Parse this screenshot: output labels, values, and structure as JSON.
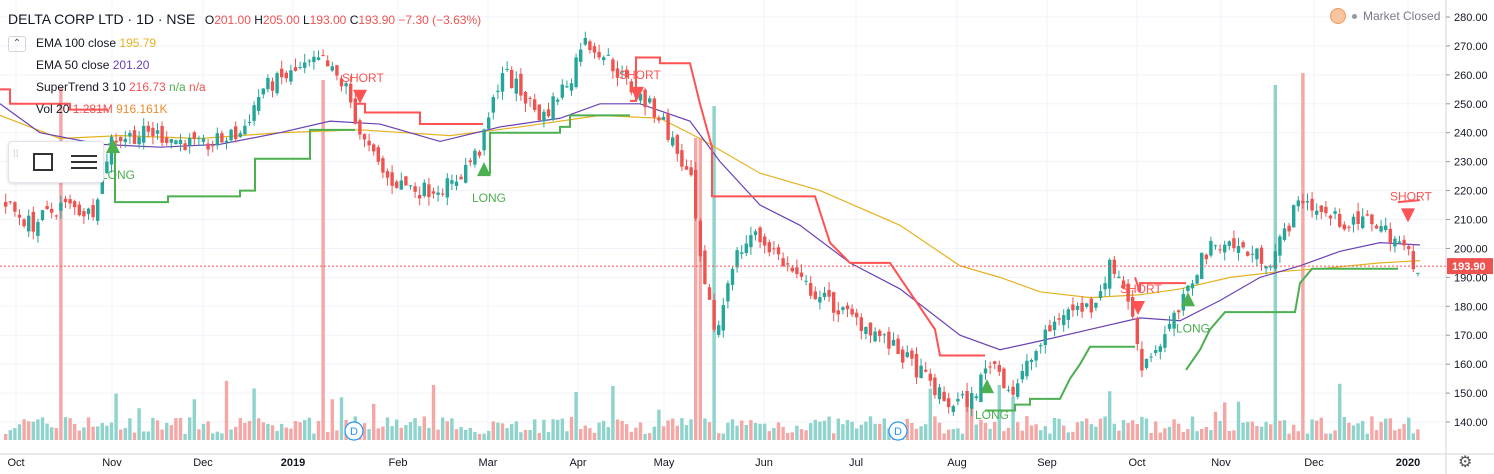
{
  "header": {
    "symbol_title": "DELTA CORP LTD · 1D · NSE",
    "ohlc": {
      "o_label": "O",
      "o": "201.00",
      "h_label": "H",
      "h": "205.00",
      "l_label": "L",
      "l": "193.00",
      "c_label": "C",
      "c": "193.90",
      "change": "−7.30 (−3.63%)"
    },
    "market_status": "Market Closed",
    "studies": [
      {
        "name": "EMA 100 close",
        "value": "195.79",
        "color": "#e7b21f"
      },
      {
        "name": "EMA 50 close",
        "value": "201.20",
        "color": "#6a41b5"
      },
      {
        "name": "SuperTrend 3 10",
        "value": "216.73",
        "value2": "n/a",
        "value3": "n/a",
        "color": "#ef5350",
        "color2": "#4caf50",
        "color3": "#ef5350"
      },
      {
        "name": "Vol 20",
        "value": "1.281M",
        "value2": "916.161K",
        "color": "#ef5350",
        "color2": "#ef8a2e"
      }
    ]
  },
  "price_scale": {
    "ticks": [
      "280.00",
      "270.00",
      "260.00",
      "250.00",
      "240.00",
      "230.00",
      "220.00",
      "210.00",
      "200.00",
      "190.00",
      "180.00",
      "170.00",
      "160.00",
      "150.00",
      "140.00"
    ],
    "last_price_label": "193.90"
  },
  "chart_data": {
    "type": "candlestick",
    "symbol": "DELTA CORP LTD",
    "interval": "1D",
    "exchange": "NSE",
    "x_ticks": [
      "Oct",
      "Nov",
      "Dec",
      "2019",
      "Feb",
      "Mar",
      "Apr",
      "May",
      "Jun",
      "Jul",
      "Aug",
      "Sep",
      "Oct",
      "Nov",
      "Dec",
      "2020"
    ],
    "y_range": [
      134,
      284
    ],
    "last_price": 193.9,
    "colors": {
      "up": "#26a69a",
      "down": "#ef5350",
      "ema100": "#e7b21f",
      "ema50": "#6a41b5",
      "st_up": "#4caf50",
      "st_down": "#ff5252"
    },
    "price_path": [
      [
        0,
        216
      ],
      [
        30,
        208
      ],
      [
        60,
        215
      ],
      [
        90,
        212
      ],
      [
        110,
        238
      ],
      [
        150,
        240
      ],
      [
        200,
        235
      ],
      [
        240,
        240
      ],
      [
        260,
        255
      ],
      [
        300,
        262
      ],
      [
        320,
        265
      ],
      [
        345,
        255
      ],
      [
        360,
        238
      ],
      [
        385,
        224
      ],
      [
        420,
        220
      ],
      [
        450,
        222
      ],
      [
        480,
        235
      ],
      [
        500,
        262
      ],
      [
        540,
        245
      ],
      [
        570,
        260
      ],
      [
        580,
        272
      ],
      [
        600,
        268
      ],
      [
        630,
        255
      ],
      [
        660,
        245
      ],
      [
        690,
        222
      ],
      [
        700,
        190
      ],
      [
        715,
        170
      ],
      [
        730,
        195
      ],
      [
        750,
        205
      ],
      [
        770,
        200
      ],
      [
        800,
        188
      ],
      [
        840,
        178
      ],
      [
        870,
        172
      ],
      [
        900,
        163
      ],
      [
        925,
        155
      ],
      [
        945,
        146
      ],
      [
        970,
        148
      ],
      [
        990,
        162
      ],
      [
        1010,
        150
      ],
      [
        1030,
        162
      ],
      [
        1060,
        178
      ],
      [
        1090,
        180
      ],
      [
        1110,
        195
      ],
      [
        1125,
        185
      ],
      [
        1140,
        160
      ],
      [
        1160,
        168
      ],
      [
        1180,
        180
      ],
      [
        1200,
        197
      ],
      [
        1220,
        203
      ],
      [
        1250,
        198
      ],
      [
        1270,
        196
      ],
      [
        1300,
        218
      ],
      [
        1320,
        212
      ],
      [
        1350,
        208
      ],
      [
        1370,
        210
      ],
      [
        1395,
        203
      ],
      [
        1415,
        194
      ]
    ],
    "ema100_path": [
      [
        0,
        246
      ],
      [
        60,
        238
      ],
      [
        120,
        239
      ],
      [
        200,
        238
      ],
      [
        280,
        240
      ],
      [
        360,
        241
      ],
      [
        450,
        239
      ],
      [
        520,
        242
      ],
      [
        600,
        246
      ],
      [
        660,
        245
      ],
      [
        700,
        238
      ],
      [
        760,
        226
      ],
      [
        820,
        220
      ],
      [
        900,
        208
      ],
      [
        960,
        194
      ],
      [
        1000,
        190
      ],
      [
        1040,
        185
      ],
      [
        1090,
        183
      ],
      [
        1140,
        184
      ],
      [
        1180,
        186
      ],
      [
        1230,
        190
      ],
      [
        1280,
        192
      ],
      [
        1320,
        193
      ],
      [
        1380,
        195
      ],
      [
        1420,
        195.8
      ]
    ],
    "ema50_path": [
      [
        0,
        250
      ],
      [
        40,
        240
      ],
      [
        100,
        236
      ],
      [
        160,
        235
      ],
      [
        220,
        236
      ],
      [
        280,
        240
      ],
      [
        330,
        244
      ],
      [
        380,
        243
      ],
      [
        440,
        237
      ],
      [
        500,
        242
      ],
      [
        560,
        245
      ],
      [
        600,
        250
      ],
      [
        640,
        250
      ],
      [
        690,
        244
      ],
      [
        720,
        230
      ],
      [
        760,
        215
      ],
      [
        800,
        208
      ],
      [
        850,
        195
      ],
      [
        900,
        186
      ],
      [
        960,
        170
      ],
      [
        1000,
        165
      ],
      [
        1040,
        168
      ],
      [
        1090,
        172
      ],
      [
        1140,
        176
      ],
      [
        1180,
        175
      ],
      [
        1220,
        182
      ],
      [
        1260,
        190
      ],
      [
        1300,
        194
      ],
      [
        1340,
        199
      ],
      [
        1380,
        202
      ],
      [
        1420,
        201.2
      ]
    ],
    "supertrend_segments": [
      {
        "dir": "down",
        "points": [
          [
            0,
            255
          ],
          [
            10,
            255
          ],
          [
            10,
            250
          ],
          [
            70,
            250
          ],
          [
            70,
            248
          ],
          [
            108,
            248
          ]
        ]
      },
      {
        "dir": "up",
        "points": [
          [
            108,
            236
          ],
          [
            115,
            236
          ],
          [
            115,
            216
          ],
          [
            168,
            216
          ],
          [
            168,
            218
          ],
          [
            240,
            218
          ],
          [
            240,
            220
          ],
          [
            255,
            220
          ],
          [
            255,
            231
          ],
          [
            310,
            231
          ],
          [
            310,
            241
          ],
          [
            355,
            241
          ]
        ]
      },
      {
        "dir": "down",
        "points": [
          [
            355,
            250
          ],
          [
            365,
            250
          ],
          [
            365,
            247
          ],
          [
            420,
            247
          ],
          [
            420,
            243
          ],
          [
            483,
            243
          ]
        ]
      },
      {
        "dir": "up",
        "points": [
          [
            483,
            226
          ],
          [
            490,
            226
          ],
          [
            490,
            240
          ],
          [
            560,
            240
          ],
          [
            560,
            242
          ],
          [
            570,
            242
          ],
          [
            570,
            246
          ],
          [
            630,
            246
          ]
        ]
      },
      {
        "dir": "down",
        "points": [
          [
            630,
            251
          ],
          [
            636,
            251
          ],
          [
            636,
            266
          ],
          [
            660,
            266
          ],
          [
            660,
            264
          ],
          [
            690,
            264
          ],
          [
            700,
            250
          ],
          [
            712,
            235
          ],
          [
            712,
            218
          ],
          [
            815,
            218
          ],
          [
            830,
            202
          ],
          [
            850,
            195
          ],
          [
            890,
            195
          ],
          [
            935,
            172
          ],
          [
            940,
            163
          ],
          [
            985,
            163
          ]
        ]
      },
      {
        "dir": "up",
        "points": [
          [
            985,
            144
          ],
          [
            1015,
            144
          ],
          [
            1015,
            146
          ],
          [
            1030,
            146
          ],
          [
            1030,
            148
          ],
          [
            1060,
            148
          ],
          [
            1070,
            155
          ],
          [
            1080,
            160
          ],
          [
            1090,
            166
          ],
          [
            1135,
            166
          ]
        ]
      },
      {
        "dir": "down",
        "points": [
          [
            1135,
            190
          ],
          [
            1140,
            185
          ],
          [
            1140,
            188
          ],
          [
            1186,
            188
          ]
        ]
      },
      {
        "dir": "up",
        "points": [
          [
            1186,
            158
          ],
          [
            1190,
            160
          ],
          [
            1200,
            165
          ],
          [
            1210,
            172
          ],
          [
            1225,
            178
          ],
          [
            1295,
            178
          ],
          [
            1300,
            188
          ],
          [
            1312,
            193
          ],
          [
            1398,
            193
          ]
        ]
      },
      {
        "dir": "down",
        "points": [
          [
            1398,
            216
          ],
          [
            1420,
            216.7
          ]
        ]
      }
    ],
    "signals": [
      {
        "type": "LONG",
        "x": 113,
        "price": 233
      },
      {
        "type": "SHORT",
        "x": 360,
        "price": 250
      },
      {
        "type": "LONG",
        "x": 484,
        "price": 225
      },
      {
        "type": "SHORT",
        "x": 637,
        "price": 251
      },
      {
        "type": "LONG",
        "x": 987,
        "price": 150
      },
      {
        "type": "SHORT",
        "x": 1138,
        "price": 177
      },
      {
        "type": "LONG",
        "x": 1188,
        "price": 180
      },
      {
        "type": "SHORT",
        "x": 1408,
        "price": 209
      }
    ],
    "dividend_markers": [
      {
        "label": "D",
        "x": 354
      },
      {
        "label": "D",
        "x": 898
      }
    ],
    "volume_spikes": [
      [
        60,
        88
      ],
      [
        320,
        80
      ],
      [
        697,
        138
      ],
      [
        712,
        106
      ],
      [
        1272,
        85
      ],
      [
        1300,
        73
      ]
    ]
  }
}
